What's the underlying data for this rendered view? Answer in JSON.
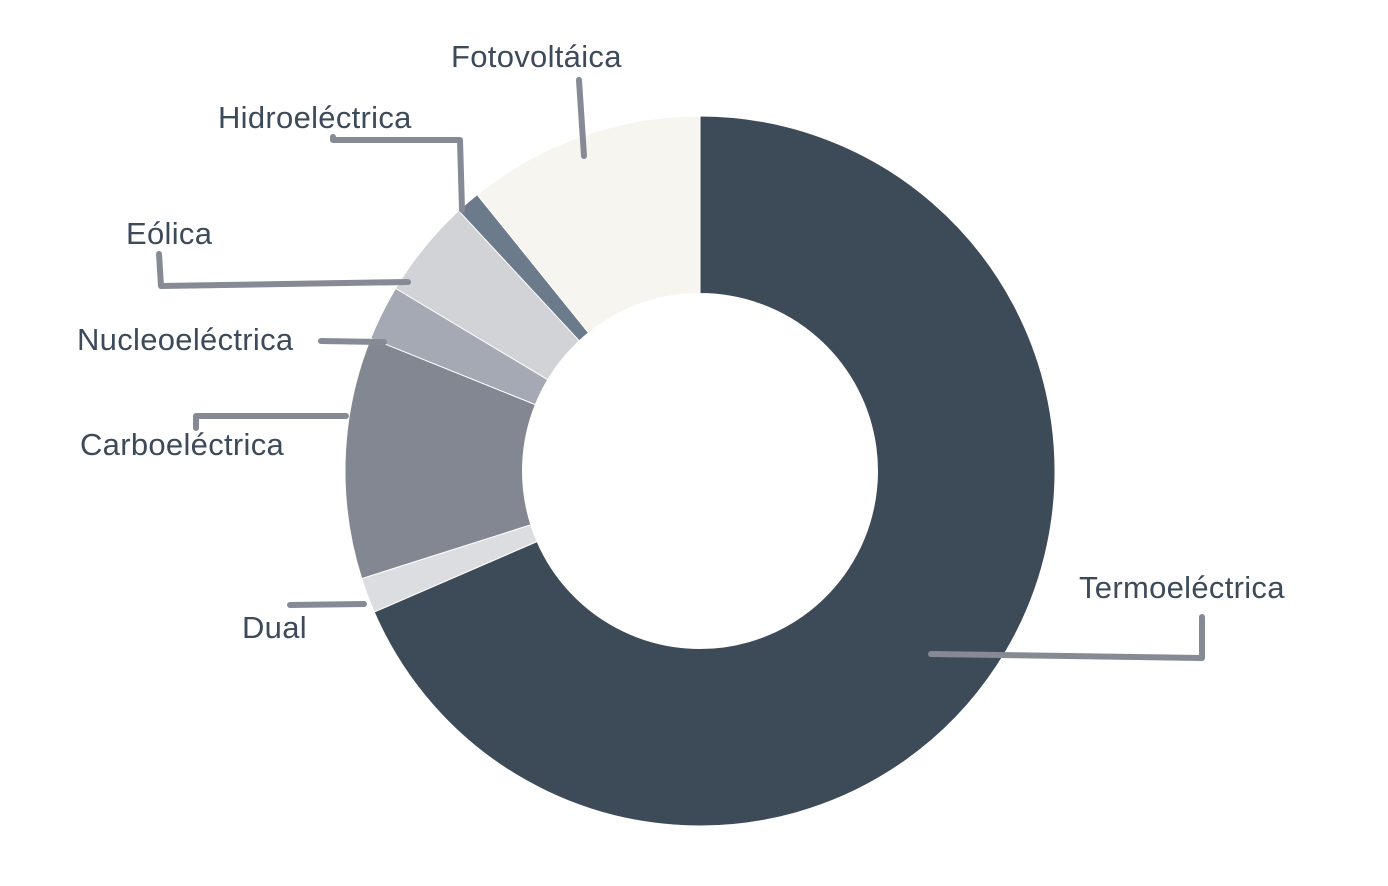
{
  "chart_data": {
    "type": "pie",
    "title": "",
    "categories": [
      "Termoeléctrica",
      "Dual",
      "Carboeléctrica",
      "Nucleoeléctrica",
      "Eólica",
      "Hidroeléctrica",
      "Fotovoltáica"
    ],
    "values": [
      68.5,
      1.6,
      11.0,
      2.5,
      4.5,
      1.1,
      10.8
    ],
    "colors": [
      "#3d4b59",
      "#dcdde1",
      "#838791",
      "#a4a9b4",
      "#d2d3d7",
      "#6c7b8b",
      "#f6f5ef"
    ],
    "hole": 0.5,
    "legend": "none"
  }
}
